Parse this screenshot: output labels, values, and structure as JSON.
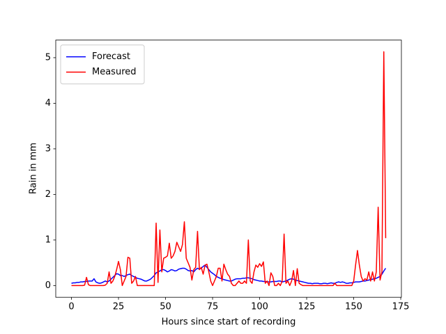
{
  "chart_data": {
    "type": "line",
    "xlabel": "Hours since start of recording",
    "ylabel": "Rain in mm",
    "x": [
      0,
      1,
      2,
      3,
      4,
      5,
      6,
      7,
      8,
      9,
      10,
      11,
      12,
      13,
      14,
      15,
      16,
      17,
      18,
      19,
      20,
      21,
      22,
      23,
      24,
      25,
      26,
      27,
      28,
      29,
      30,
      31,
      32,
      33,
      34,
      35,
      36,
      37,
      38,
      39,
      40,
      41,
      42,
      43,
      44,
      45,
      46,
      47,
      48,
      49,
      50,
      51,
      52,
      53,
      54,
      55,
      56,
      57,
      58,
      59,
      60,
      61,
      62,
      63,
      64,
      65,
      66,
      67,
      68,
      69,
      70,
      71,
      72,
      73,
      74,
      75,
      76,
      77,
      78,
      79,
      80,
      81,
      82,
      83,
      84,
      85,
      86,
      87,
      88,
      89,
      90,
      91,
      92,
      93,
      94,
      95,
      96,
      97,
      98,
      99,
      100,
      101,
      102,
      103,
      104,
      105,
      106,
      107,
      108,
      109,
      110,
      111,
      112,
      113,
      114,
      115,
      116,
      117,
      118,
      119,
      120,
      121,
      122,
      123,
      124,
      125,
      126,
      127,
      128,
      129,
      130,
      131,
      132,
      133,
      134,
      135,
      136,
      137,
      138,
      139,
      140,
      141,
      142,
      143,
      144,
      145,
      146,
      147,
      148,
      149,
      150,
      151,
      152,
      153,
      154,
      155,
      156,
      157,
      158,
      159,
      160,
      161,
      162,
      163,
      164,
      165,
      166,
      167
    ],
    "series": [
      {
        "name": "Forecast",
        "color": "#0000ff",
        "values": [
          0.05,
          0.06,
          0.06,
          0.07,
          0.07,
          0.08,
          0.08,
          0.09,
          0.09,
          0.1,
          0.1,
          0.1,
          0.15,
          0.08,
          0.06,
          0.05,
          0.06,
          0.08,
          0.1,
          0.08,
          0.1,
          0.14,
          0.18,
          0.22,
          0.26,
          0.25,
          0.22,
          0.22,
          0.2,
          0.22,
          0.24,
          0.25,
          0.22,
          0.2,
          0.18,
          0.16,
          0.15,
          0.14,
          0.12,
          0.1,
          0.1,
          0.12,
          0.14,
          0.18,
          0.22,
          0.28,
          0.3,
          0.32,
          0.35,
          0.35,
          0.33,
          0.3,
          0.32,
          0.35,
          0.34,
          0.32,
          0.33,
          0.36,
          0.37,
          0.38,
          0.38,
          0.36,
          0.33,
          0.32,
          0.33,
          0.3,
          0.35,
          0.38,
          0.36,
          0.38,
          0.42,
          0.45,
          0.4,
          0.35,
          0.3,
          0.27,
          0.24,
          0.2,
          0.18,
          0.16,
          0.15,
          0.13,
          0.12,
          0.11,
          0.1,
          0.1,
          0.12,
          0.14,
          0.15,
          0.15,
          0.15,
          0.16,
          0.16,
          0.17,
          0.17,
          0.16,
          0.15,
          0.13,
          0.12,
          0.11,
          0.1,
          0.1,
          0.09,
          0.09,
          0.08,
          0.08,
          0.08,
          0.09,
          0.09,
          0.09,
          0.1,
          0.1,
          0.08,
          0.09,
          0.1,
          0.12,
          0.14,
          0.15,
          0.14,
          0.12,
          0.11,
          0.1,
          0.09,
          0.08,
          0.07,
          0.06,
          0.05,
          0.05,
          0.04,
          0.05,
          0.05,
          0.05,
          0.04,
          0.04,
          0.05,
          0.05,
          0.04,
          0.05,
          0.06,
          0.05,
          0.05,
          0.07,
          0.08,
          0.07,
          0.08,
          0.07,
          0.05,
          0.05,
          0.06,
          0.06,
          0.07,
          0.08,
          0.08,
          0.08,
          0.09,
          0.1,
          0.1,
          0.11,
          0.12,
          0.13,
          0.14,
          0.15,
          0.16,
          0.18,
          0.2,
          0.25,
          0.32,
          0.38
        ]
      },
      {
        "name": "Measured",
        "color": "#ff0000",
        "values": [
          0,
          0,
          0,
          0,
          0,
          0,
          0,
          0.01,
          0.18,
          0.02,
          0,
          0,
          0,
          0,
          0,
          0,
          0,
          0,
          0.01,
          0.05,
          0.3,
          0.05,
          0.1,
          0.2,
          0.35,
          0.53,
          0.35,
          0,
          0.1,
          0.2,
          0.62,
          0.6,
          0.05,
          0.1,
          0.2,
          0,
          0,
          0,
          0,
          0,
          0,
          0,
          0,
          0,
          0,
          1.37,
          0.07,
          1.22,
          0.3,
          0.6,
          0.62,
          0.65,
          0.93,
          0.6,
          0.65,
          0.75,
          0.95,
          0.85,
          0.75,
          0.9,
          1.4,
          0.6,
          0.5,
          0.4,
          0.12,
          0.35,
          0.4,
          1.19,
          0.35,
          0.4,
          0.25,
          0.45,
          0.47,
          0.3,
          0.1,
          0,
          0.1,
          0.2,
          0.38,
          0.38,
          0.1,
          0.47,
          0.35,
          0.25,
          0.2,
          0.05,
          0,
          0,
          0.05,
          0.1,
          0.05,
          0.05,
          0.1,
          0.05,
          1.0,
          0.1,
          0.05,
          0.3,
          0.45,
          0.4,
          0.48,
          0.42,
          0.52,
          0.05,
          0.1,
          0,
          0.28,
          0.2,
          0,
          0,
          0.05,
          0,
          0.1,
          1.13,
          0.05,
          0.1,
          0,
          0.1,
          0.33,
          0,
          0.37,
          0.05,
          0.02,
          0,
          0,
          0,
          0,
          0,
          0,
          0,
          0,
          0,
          0,
          0,
          0,
          0,
          0,
          0,
          0,
          0,
          0.05,
          0,
          0,
          0,
          0,
          0,
          0,
          0,
          0,
          0,
          0.1,
          0.45,
          0.77,
          0.45,
          0.2,
          0.1,
          0.15,
          0.12,
          0.3,
          0.1,
          0.3,
          0.1,
          0.3,
          1.72,
          0.12,
          0.3,
          5.13,
          1.04
        ]
      }
    ],
    "xlim": [
      -8.35,
      175.35
    ],
    "xticks": [
      0,
      25,
      50,
      75,
      100,
      125,
      150,
      175
    ],
    "ylim": [
      -0.2565,
      5.3865
    ],
    "yticks": [
      0,
      1,
      2,
      3,
      4,
      5
    ],
    "legend": "upper left"
  }
}
